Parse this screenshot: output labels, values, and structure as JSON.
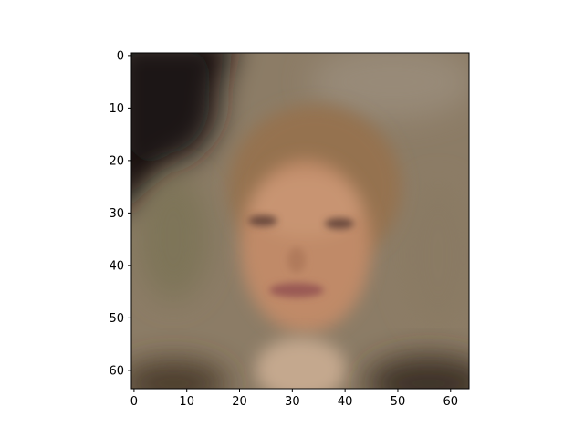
{
  "chart_data": {
    "type": "heatmap",
    "title": "",
    "xlabel": "",
    "ylabel": "",
    "image_shape": [
      64,
      64
    ],
    "xlim": [
      -0.5,
      63.5
    ],
    "ylim": [
      63.5,
      -0.5
    ],
    "y_axis_inverted": true,
    "grid": false,
    "x_ticks": [
      0,
      10,
      20,
      30,
      40,
      50,
      60
    ],
    "x_tick_labels": [
      "0",
      "10",
      "20",
      "30",
      "40",
      "50",
      "60"
    ],
    "y_ticks": [
      0,
      10,
      20,
      30,
      40,
      50,
      60
    ],
    "y_tick_labels": [
      "0",
      "10",
      "20",
      "30",
      "40",
      "50",
      "60"
    ],
    "content": "blurry low-resolution RGB face image (imshow)",
    "colors": {
      "dark_corner": "#14110e",
      "background": "#8c7c66",
      "hair": "#9a7552",
      "skin": "#c08a68",
      "lips": "#9a5a55",
      "frame": "#000000"
    }
  }
}
